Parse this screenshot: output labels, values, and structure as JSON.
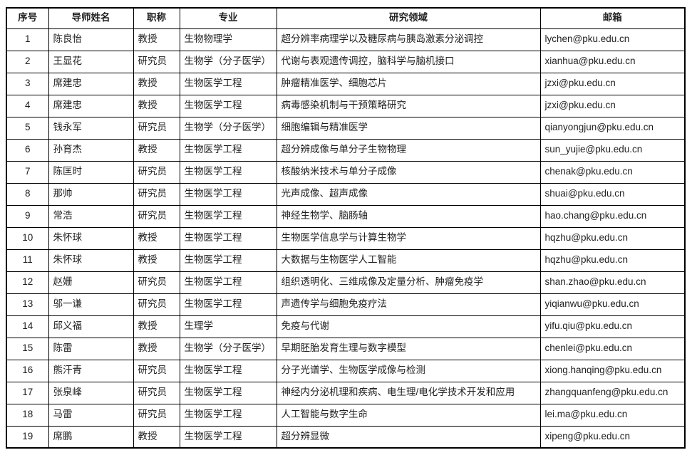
{
  "table": {
    "columns": {
      "no": "序号",
      "name": "导师姓名",
      "title": "职称",
      "major": "专业",
      "field": "研究领域",
      "email": "邮箱"
    },
    "rows": [
      {
        "no": "1",
        "name": "陈良怡",
        "title": "教授",
        "major": "生物物理学",
        "field": "超分辨率病理学以及糖尿病与胰岛激素分泌调控",
        "email": "lychen@pku.edu.cn"
      },
      {
        "no": "2",
        "name": "王显花",
        "title": "研究员",
        "major": "生物学（分子医学）",
        "field": "代谢与表观遗传调控，脑科学与脑机接口",
        "email": "xianhua@pku.edu.cn"
      },
      {
        "no": "3",
        "name": "席建忠",
        "title": "教授",
        "major": "生物医学工程",
        "field": "肿瘤精准医学、细胞芯片",
        "email": "jzxi@pku.edu.cn"
      },
      {
        "no": "4",
        "name": "席建忠",
        "title": "教授",
        "major": "生物医学工程",
        "field": "病毒感染机制与干预策略研究",
        "email": "jzxi@pku.edu.cn"
      },
      {
        "no": "5",
        "name": "钱永军",
        "title": "研究员",
        "major": "生物学（分子医学）",
        "field": "细胞编辑与精准医学",
        "email": "qianyongjun@pku.edu.cn"
      },
      {
        "no": "6",
        "name": "孙育杰",
        "title": "教授",
        "major": "生物医学工程",
        "field": "超分辨成像与单分子生物物理",
        "email": "sun_yujie@pku.edu.cn"
      },
      {
        "no": "7",
        "name": "陈匡时",
        "title": "研究员",
        "major": "生物医学工程",
        "field": "核酸纳米技术与单分子成像",
        "email": "chenak@pku.edu.cn"
      },
      {
        "no": "8",
        "name": "那帅",
        "title": "研究员",
        "major": "生物医学工程",
        "field": "光声成像、超声成像",
        "email": "shuai@pku.edu.cn"
      },
      {
        "no": "9",
        "name": "常浩",
        "title": "研究员",
        "major": "生物医学工程",
        "field": "神经生物学、脑肠轴",
        "email": "hao.chang@pku.edu.cn"
      },
      {
        "no": "10",
        "name": "朱怀球",
        "title": "教授",
        "major": "生物医学工程",
        "field": "生物医学信息学与计算生物学",
        "email": "hqzhu@pku.edu.cn"
      },
      {
        "no": "11",
        "name": "朱怀球",
        "title": "教授",
        "major": "生物医学工程",
        "field": "大数据与生物医学人工智能",
        "email": "hqzhu@pku.edu.cn"
      },
      {
        "no": "12",
        "name": "赵姗",
        "title": "研究员",
        "major": "生物医学工程",
        "field": "组织透明化、三维成像及定量分析、肿瘤免疫学",
        "email": "shan.zhao@pku.edu.cn"
      },
      {
        "no": "13",
        "name": "邬一谦",
        "title": "研究员",
        "major": "生物医学工程",
        "field": "声遗传学与细胞免疫疗法",
        "email": "yiqianwu@pku.edu.cn"
      },
      {
        "no": "14",
        "name": "邱义福",
        "title": "教授",
        "major": "生理学",
        "field": "免疫与代谢",
        "email": "yifu.qiu@pku.edu.cn"
      },
      {
        "no": "15",
        "name": "陈雷",
        "title": "教授",
        "major": "生物学（分子医学）",
        "field": "早期胚胎发育生理与数字模型",
        "email": "chenlei@pku.edu.cn"
      },
      {
        "no": "16",
        "name": "熊汗青",
        "title": "研究员",
        "major": "生物医学工程",
        "field": "分子光谱学、生物医学成像与检测",
        "email": "xiong.hanqing@pku.edu.cn"
      },
      {
        "no": "17",
        "name": "张泉峰",
        "title": "研究员",
        "major": "生物医学工程",
        "field": "神经内分泌机理和疾病、电生理/电化学技术开发和应用",
        "email": "zhangquanfeng@pku.edu.cn"
      },
      {
        "no": "18",
        "name": "马雷",
        "title": "研究员",
        "major": "生物医学工程",
        "field": "人工智能与数字生命",
        "email": "lei.ma@pku.edu.cn"
      },
      {
        "no": "19",
        "name": "席鹏",
        "title": "教授",
        "major": "生物医学工程",
        "field": "超分辨显微",
        "email": "xipeng@pku.edu.cn"
      }
    ]
  }
}
